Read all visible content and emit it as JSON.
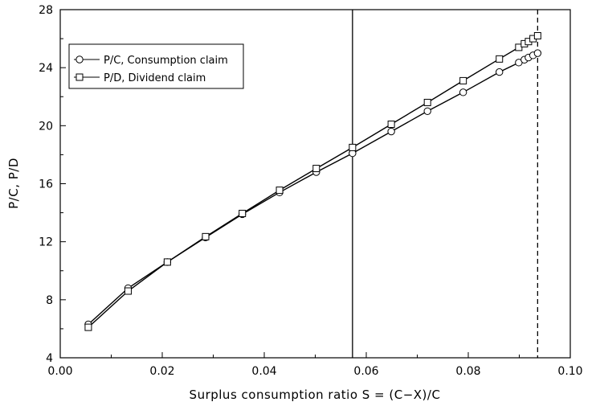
{
  "chart_data": {
    "type": "line",
    "xlabel": "Surplus consumption ratio S = (C−X)/C",
    "ylabel": "P/C, P/D",
    "xlim": [
      0.0,
      0.1
    ],
    "ylim": [
      4,
      28
    ],
    "x_ticks": [
      "0.00",
      "0.02",
      "0.04",
      "0.06",
      "0.08",
      "0.10"
    ],
    "y_ticks": [
      "4",
      "8",
      "12",
      "16",
      "20",
      "24",
      "28"
    ],
    "legend_position": "top-left",
    "grid": false,
    "reference_lines": [
      {
        "x": 0.0573,
        "style": "solid"
      },
      {
        "x": 0.0936,
        "style": "dashed"
      }
    ],
    "series": [
      {
        "name": "P/C, Consumption claim",
        "marker": "circle",
        "x": [
          0.0055,
          0.0133,
          0.021,
          0.0285,
          0.0357,
          0.043,
          0.0502,
          0.0573,
          0.0649,
          0.072,
          0.079,
          0.0861,
          0.0899,
          0.091,
          0.0918,
          0.0927,
          0.0936
        ],
        "y": [
          6.3,
          8.8,
          10.6,
          12.3,
          13.9,
          15.4,
          16.8,
          18.1,
          19.6,
          21.0,
          22.3,
          23.7,
          24.35,
          24.55,
          24.7,
          24.85,
          25.0
        ]
      },
      {
        "name": "P/D, Dividend claim",
        "marker": "square",
        "x": [
          0.0055,
          0.0133,
          0.021,
          0.0285,
          0.0357,
          0.043,
          0.0502,
          0.0573,
          0.0649,
          0.072,
          0.079,
          0.0861,
          0.0899,
          0.091,
          0.0918,
          0.0927,
          0.0936
        ],
        "y": [
          6.1,
          8.6,
          10.6,
          12.35,
          13.95,
          15.55,
          17.05,
          18.5,
          20.1,
          21.6,
          23.1,
          24.6,
          25.4,
          25.65,
          25.8,
          26.0,
          26.2
        ]
      }
    ]
  }
}
